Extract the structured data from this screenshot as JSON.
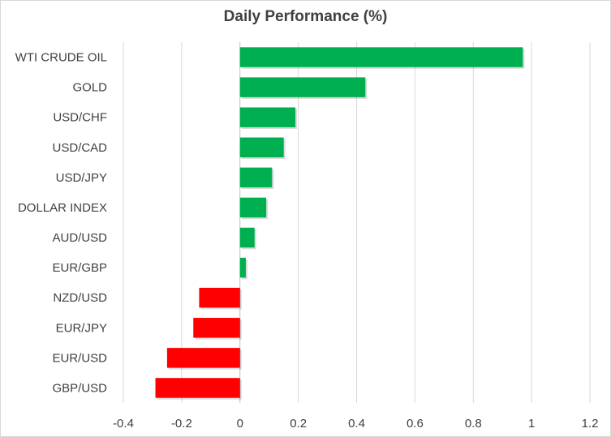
{
  "chart_data": {
    "type": "bar",
    "orientation": "horizontal",
    "title": "Daily Performance  (%)",
    "categories": [
      "WTI CRUDE OIL",
      "GOLD",
      "USD/CHF",
      "USD/CAD",
      "USD/JPY",
      "DOLLAR INDEX",
      "AUD/USD",
      "EUR/GBP",
      "NZD/USD",
      "EUR/JPY",
      "EUR/USD",
      "GBP/USD"
    ],
    "values": [
      0.97,
      0.43,
      0.19,
      0.15,
      0.11,
      0.09,
      0.05,
      0.02,
      -0.14,
      -0.16,
      -0.25,
      -0.29
    ],
    "xlim": [
      -0.4,
      1.2
    ],
    "xticks": [
      "-0.4",
      "-0.2",
      "0",
      "0.2",
      "0.4",
      "0.6",
      "0.8",
      "1",
      "1.2"
    ],
    "xtick_values": [
      -0.4,
      -0.2,
      0,
      0.2,
      0.4,
      0.6,
      0.8,
      1,
      1.2
    ],
    "grid": true,
    "colors": {
      "positive": "#00b050",
      "negative": "#ff0000",
      "grid": "#d9d9d9",
      "text": "#404040"
    }
  }
}
